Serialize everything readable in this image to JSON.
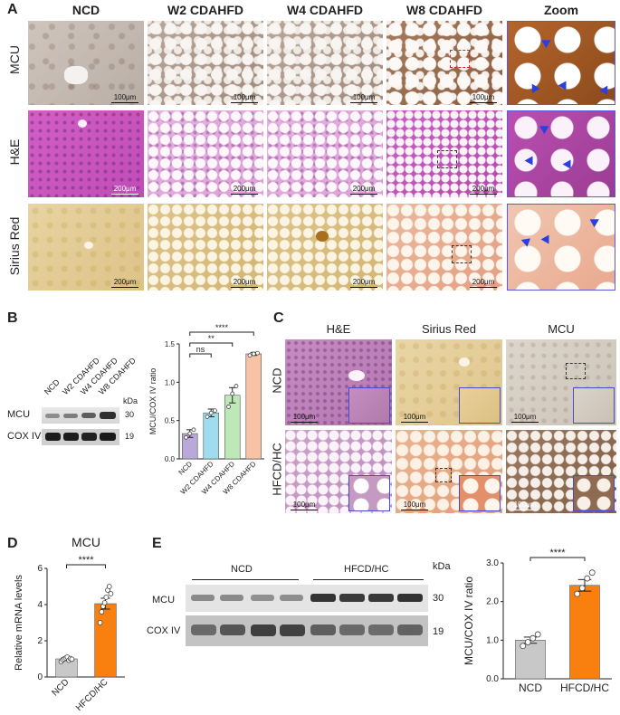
{
  "panel_a": {
    "letter": "A",
    "columns": [
      "NCD",
      "W2 CDAHFD",
      "W4 CDAHFD",
      "W8 CDAHFD",
      "Zoom"
    ],
    "rows": [
      "MCU",
      "H&E",
      "Sirius Red"
    ],
    "scale_mcu": "100μm",
    "scale_other": "200μm"
  },
  "panel_b": {
    "letter": "B",
    "lanes": [
      "NCD",
      "W2 CDAHFD",
      "W4 CDAHFD",
      "W8 CDAHFD"
    ],
    "kda": "kDa",
    "blots": [
      {
        "label": "MCU",
        "kda": "30"
      },
      {
        "label": "COX IV",
        "kda": "19"
      }
    ]
  },
  "panel_c": {
    "letter": "C",
    "columns": [
      "H&E",
      "Sirius Red",
      "MCU"
    ],
    "rows": [
      "NCD",
      "HFCD/HC"
    ],
    "scale": "100μm"
  },
  "panel_d": {
    "letter": "D",
    "title": "MCU"
  },
  "panel_e": {
    "letter": "E",
    "group_ncd": "NCD",
    "group_hfcd": "HFCD/HC",
    "kda": "kDa",
    "blots": [
      {
        "label": "MCU",
        "kda": "30"
      },
      {
        "label": "COX IV",
        "kda": "19"
      }
    ]
  },
  "chart_data": [
    {
      "id": "B-bar",
      "type": "bar",
      "categories": [
        "NCD",
        "W2 CDAHFD",
        "W4 CDAHFD",
        "W8 CDAHFD"
      ],
      "values": [
        0.33,
        0.6,
        0.83,
        1.37
      ],
      "errors": [
        0.05,
        0.05,
        0.1,
        0.02
      ],
      "points": [
        [
          0.28,
          0.33,
          0.38
        ],
        [
          0.55,
          0.6,
          0.63
        ],
        [
          0.68,
          0.85,
          0.95
        ],
        [
          1.35,
          1.37,
          1.38
        ]
      ],
      "colors": [
        "#b9a8d8",
        "#9fdcf0",
        "#bfe8b8",
        "#f7c2a6"
      ],
      "ylabel": "MCU/COX IV ratio",
      "ylim": [
        0,
        1.5
      ],
      "yticks": [
        "0.0",
        "0.5",
        "1.0",
        "1.5"
      ],
      "significance": [
        {
          "from": 0,
          "to": 1,
          "label": "ns"
        },
        {
          "from": 0,
          "to": 2,
          "label": "**"
        },
        {
          "from": 0,
          "to": 3,
          "label": "****"
        }
      ]
    },
    {
      "id": "D-bar",
      "type": "bar",
      "categories": [
        "NCD",
        "HFCD/HC"
      ],
      "values": [
        1.0,
        4.05
      ],
      "errors": [
        0.08,
        0.3
      ],
      "points": [
        [
          0.85,
          0.95,
          1.0,
          1.05,
          1.1,
          0.92,
          1.02,
          0.98
        ],
        [
          3.0,
          3.6,
          3.9,
          4.1,
          4.4,
          4.8,
          5.0,
          4.6
        ]
      ],
      "colors": [
        "#c8c8c8",
        "#f97f0f"
      ],
      "ylabel": "Relative mRNA levels",
      "ylim": [
        0,
        6
      ],
      "yticks": [
        "0",
        "2",
        "4",
        "6"
      ],
      "significance": [
        {
          "from": 0,
          "to": 1,
          "label": "****"
        }
      ]
    },
    {
      "id": "E-bar",
      "type": "bar",
      "categories": [
        "NCD",
        "HFCD/HC"
      ],
      "values": [
        1.0,
        2.42
      ],
      "errors": [
        0.08,
        0.15
      ],
      "points": [
        [
          0.85,
          0.95,
          1.05,
          1.15
        ],
        [
          2.2,
          2.35,
          2.6,
          2.75
        ]
      ],
      "colors": [
        "#c8c8c8",
        "#f97f0f"
      ],
      "ylabel": "MCU/COX IV ratio",
      "ylim": [
        0,
        3
      ],
      "yticks": [
        "0.0",
        "1.0",
        "2.0",
        "3.0"
      ],
      "significance": [
        {
          "from": 0,
          "to": 1,
          "label": "****"
        }
      ]
    }
  ]
}
